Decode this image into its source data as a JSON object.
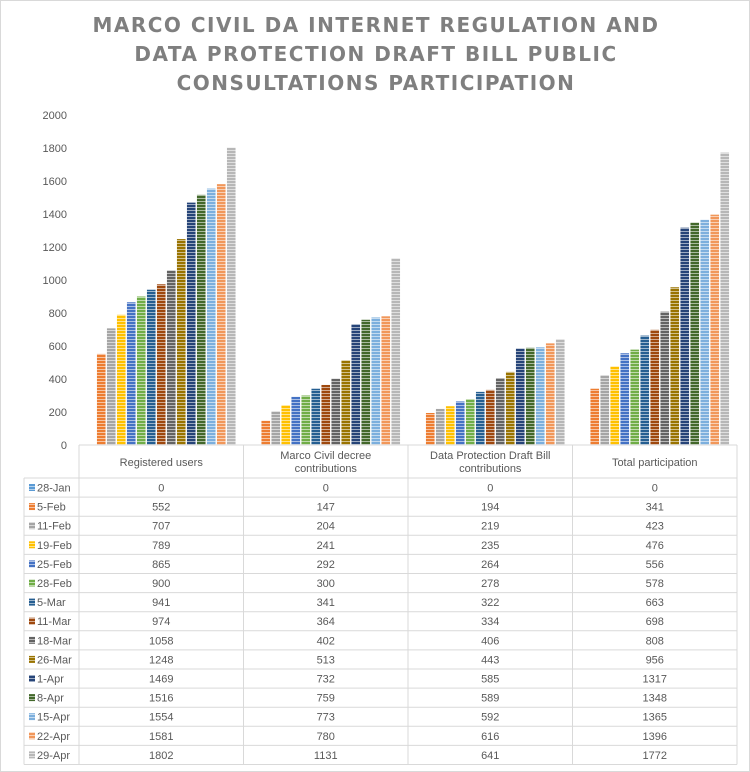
{
  "chart_data": {
    "type": "bar",
    "title": [
      "MARCO CIVIL DA INTERNET REGULATION AND",
      "DATA PROTECTION DRAFT BILL PUBLIC",
      "CONSULTATIONS PARTICIPATION"
    ],
    "categories": [
      "Registered users",
      "Marco Civil decree contributions",
      "Data Protection Draft Bill contributions",
      "Total participation"
    ],
    "category_lines": [
      [
        "Registered users"
      ],
      [
        "Marco Civil decree",
        "contributions"
      ],
      [
        "Data Protection Draft Bill",
        "contributions"
      ],
      [
        "Total participation"
      ]
    ],
    "ylim": [
      0,
      2000
    ],
    "yticks": [
      0,
      200,
      400,
      600,
      800,
      1000,
      1200,
      1400,
      1600,
      1800,
      2000
    ],
    "grid": false,
    "legend": "data-table",
    "series": [
      {
        "name": "28-Jan",
        "color": "#5B9BD5",
        "values": [
          0,
          0,
          0,
          0
        ]
      },
      {
        "name": "5-Feb",
        "color": "#ED7D31",
        "values": [
          552,
          147,
          194,
          341
        ]
      },
      {
        "name": "11-Feb",
        "color": "#A5A5A5",
        "values": [
          707,
          204,
          219,
          423
        ]
      },
      {
        "name": "19-Feb",
        "color": "#FFC000",
        "values": [
          789,
          241,
          235,
          476
        ]
      },
      {
        "name": "25-Feb",
        "color": "#4472C4",
        "values": [
          865,
          292,
          264,
          556
        ]
      },
      {
        "name": "28-Feb",
        "color": "#70AD47",
        "values": [
          900,
          300,
          278,
          578
        ]
      },
      {
        "name": "5-Mar",
        "color": "#255E91",
        "values": [
          941,
          341,
          322,
          663
        ]
      },
      {
        "name": "11-Mar",
        "color": "#9E480E",
        "values": [
          974,
          364,
          334,
          698
        ]
      },
      {
        "name": "18-Mar",
        "color": "#636363",
        "values": [
          1058,
          402,
          406,
          808
        ]
      },
      {
        "name": "26-Mar",
        "color": "#997300",
        "values": [
          1248,
          513,
          443,
          956
        ]
      },
      {
        "name": "1-Apr",
        "color": "#264478",
        "values": [
          1469,
          732,
          585,
          1317
        ]
      },
      {
        "name": "8-Apr",
        "color": "#43682B",
        "values": [
          1516,
          759,
          589,
          1348
        ]
      },
      {
        "name": "15-Apr",
        "color": "#7CAFDD",
        "values": [
          1554,
          773,
          592,
          1365
        ]
      },
      {
        "name": "22-Apr",
        "color": "#F1975A",
        "values": [
          1581,
          780,
          616,
          1396
        ]
      },
      {
        "name": "29-Apr",
        "color": "#B7B7B7",
        "values": [
          1802,
          1131,
          641,
          1772
        ]
      }
    ]
  }
}
